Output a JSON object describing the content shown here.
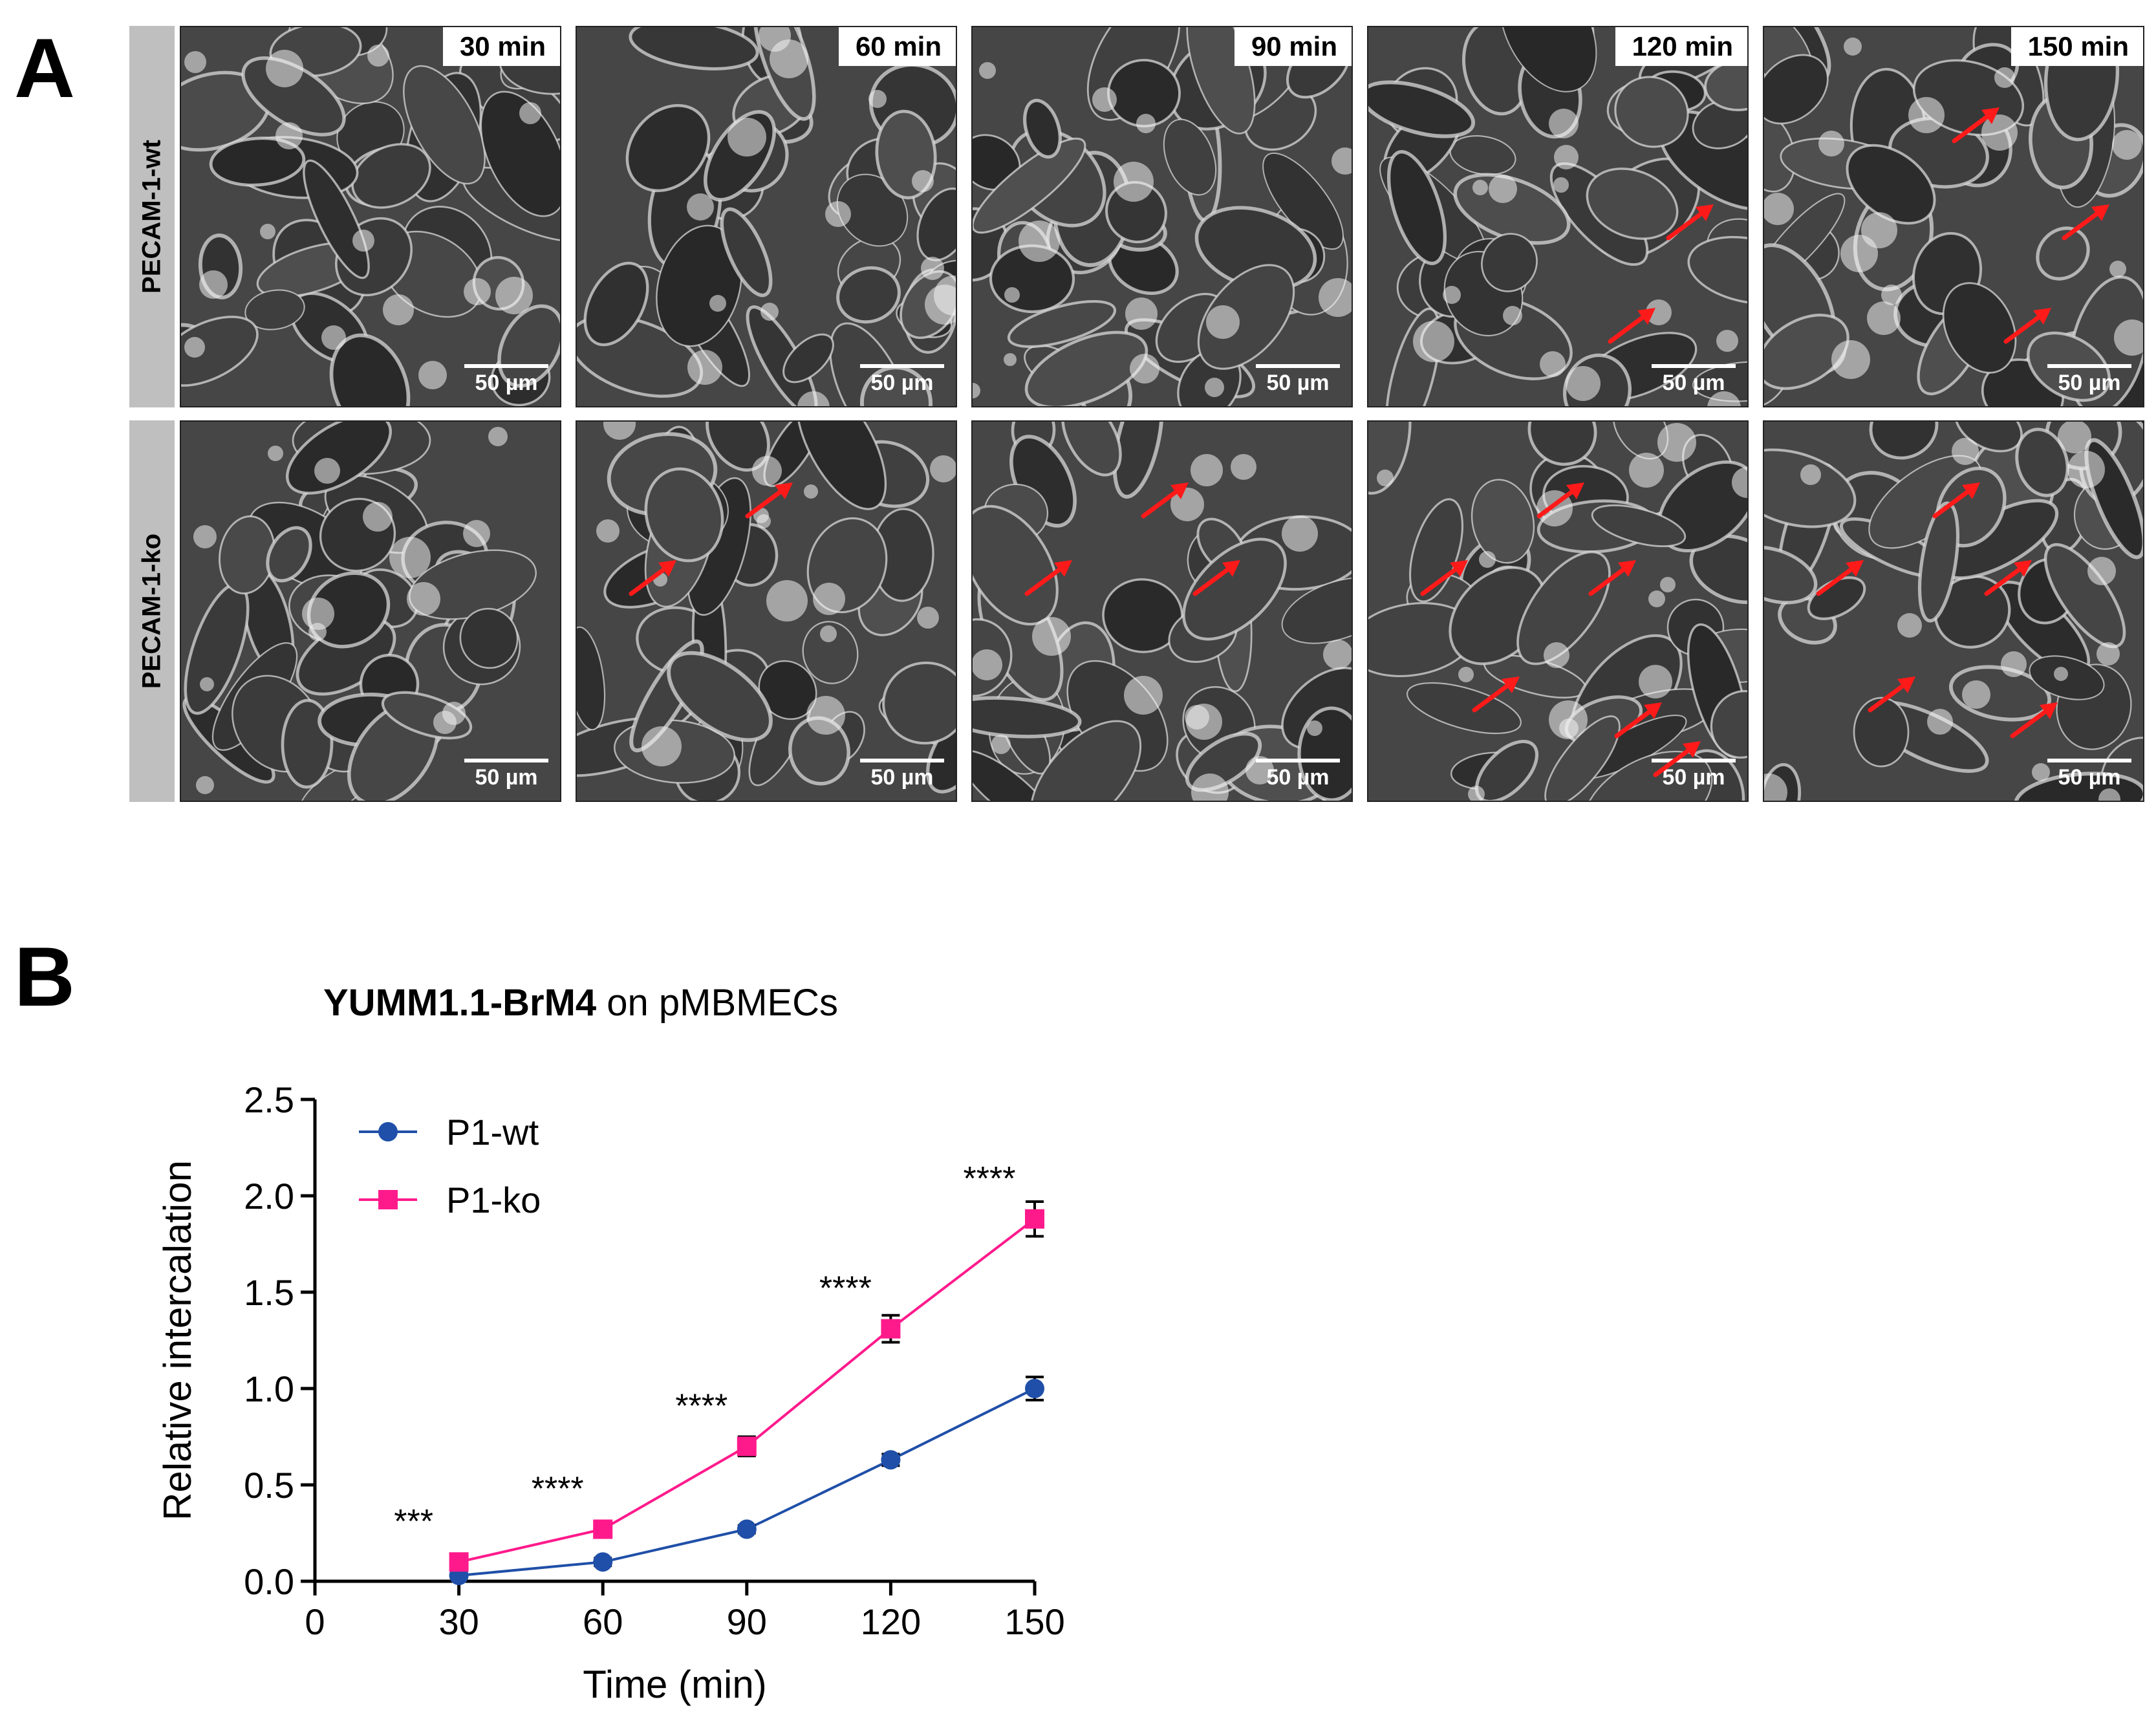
{
  "panel_a": {
    "letter": "A",
    "rows": [
      {
        "label": "PECAM-1-wt",
        "tiles": [
          {
            "time": "30 min",
            "scale": "50 µm",
            "arrows": 0
          },
          {
            "time": "60 min",
            "scale": "50 µm",
            "arrows": 0
          },
          {
            "time": "90 min",
            "scale": "50 µm",
            "arrows": 0
          },
          {
            "time": "120 min",
            "scale": "50 µm",
            "arrows": 2
          },
          {
            "time": "150 min",
            "scale": "50 µm",
            "arrows": 3
          }
        ]
      },
      {
        "label": "PECAM-1-ko",
        "tiles": [
          {
            "time": "",
            "scale": "50 µm",
            "arrows": 0
          },
          {
            "time": "",
            "scale": "50 µm",
            "arrows": 2
          },
          {
            "time": "",
            "scale": "50 µm",
            "arrows": 3
          },
          {
            "time": "",
            "scale": "50 µm",
            "arrows": 6
          },
          {
            "time": "",
            "scale": "50 µm",
            "arrows": 5
          }
        ]
      }
    ],
    "arrow_color": "#ff1a1a"
  },
  "panel_b": {
    "letter": "B"
  },
  "chart_data": {
    "type": "line",
    "title_bold": "YUMM1.1-BrM4",
    "title_rest": " on pMBMECs",
    "xlabel": "Time (min)",
    "ylabel": "Relative intercalation",
    "x": [
      30,
      60,
      90,
      120,
      150
    ],
    "xlim": [
      0,
      150
    ],
    "ylim": [
      0,
      2.5
    ],
    "xticks": [
      "0",
      "30",
      "60",
      "90",
      "120",
      "150"
    ],
    "yticks": [
      "0.0",
      "0.5",
      "1.0",
      "1.5",
      "2.0",
      "2.5"
    ],
    "legend_position": "top-left",
    "series": [
      {
        "name": "P1-wt",
        "marker": "circle",
        "color": "#1f4fa8",
        "values": [
          0.03,
          0.1,
          0.27,
          0.63,
          1.0
        ],
        "errors": [
          0.01,
          0.02,
          0.02,
          0.03,
          0.06
        ]
      },
      {
        "name": "P1-ko",
        "marker": "square",
        "color": "#ff1a8c",
        "values": [
          0.1,
          0.27,
          0.7,
          1.31,
          1.88
        ],
        "errors": [
          0.02,
          0.03,
          0.05,
          0.07,
          0.09
        ]
      }
    ],
    "significance": [
      "***",
      "****",
      "****",
      "****",
      "****"
    ]
  }
}
